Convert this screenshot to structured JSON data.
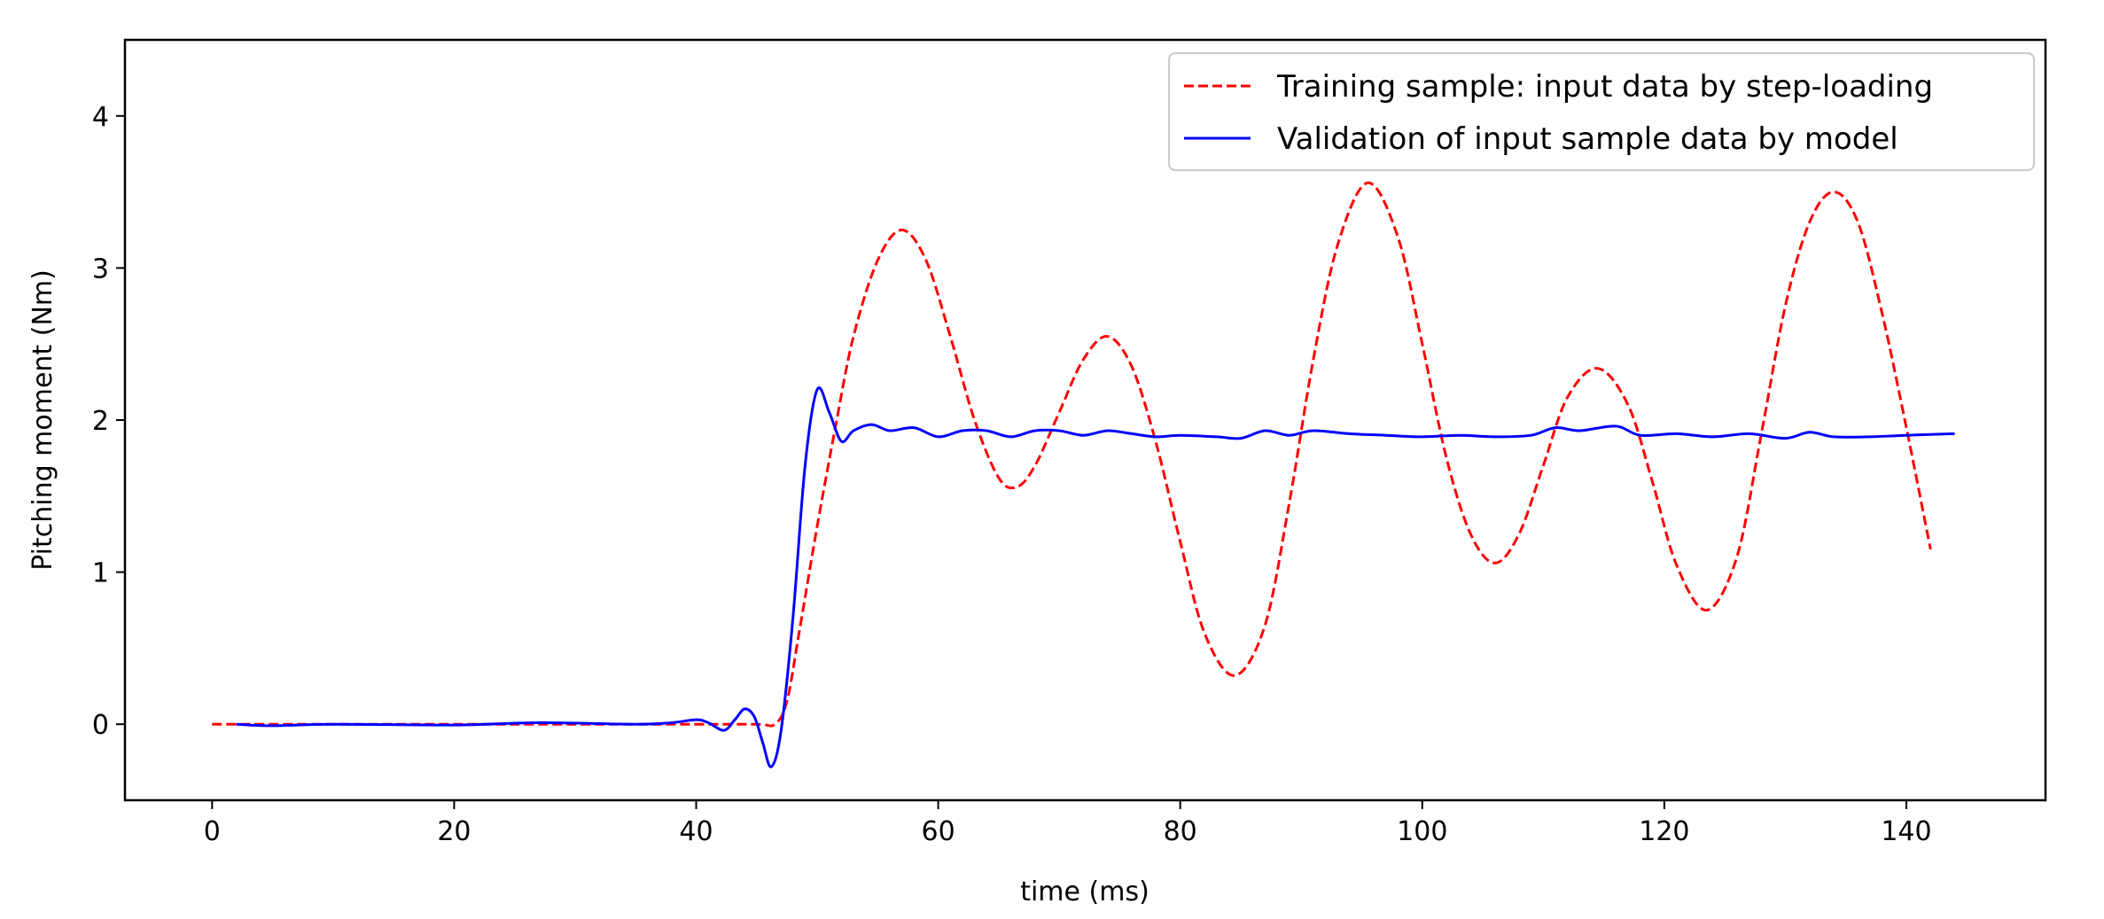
{
  "chart_data": {
    "type": "line",
    "title": "",
    "xlabel": "time (ms)",
    "ylabel": "Pitching moment (Nm)",
    "xlim": [
      -7.2,
      151.5
    ],
    "ylim": [
      -0.5,
      4.5
    ],
    "xticks": [
      0,
      20,
      40,
      60,
      80,
      100,
      120,
      140
    ],
    "yticks": [
      0,
      1,
      2,
      3,
      4
    ],
    "grid": false,
    "legend_position": "top-right",
    "series": [
      {
        "name": "Training sample: input data by step-loading",
        "color": "#ff0000",
        "style": "dashed",
        "points": [
          [
            0,
            0
          ],
          [
            10,
            0
          ],
          [
            20,
            0
          ],
          [
            30,
            0
          ],
          [
            40,
            0
          ],
          [
            45,
            0
          ],
          [
            46.5,
            0.0
          ],
          [
            47.5,
            0.15
          ],
          [
            48.5,
            0.6
          ],
          [
            50,
            1.3
          ],
          [
            51.5,
            1.95
          ],
          [
            53,
            2.55
          ],
          [
            55,
            3.05
          ],
          [
            57,
            3.25
          ],
          [
            59,
            3.05
          ],
          [
            61,
            2.55
          ],
          [
            63,
            2.0
          ],
          [
            65,
            1.62
          ],
          [
            66.5,
            1.56
          ],
          [
            68,
            1.7
          ],
          [
            70,
            2.05
          ],
          [
            72,
            2.4
          ],
          [
            74,
            2.55
          ],
          [
            76,
            2.35
          ],
          [
            78,
            1.85
          ],
          [
            80,
            1.2
          ],
          [
            82,
            0.6
          ],
          [
            84.5,
            0.32
          ],
          [
            87,
            0.65
          ],
          [
            89,
            1.45
          ],
          [
            91,
            2.4
          ],
          [
            93,
            3.15
          ],
          [
            95.5,
            3.56
          ],
          [
            98,
            3.2
          ],
          [
            100,
            2.5
          ],
          [
            102,
            1.75
          ],
          [
            104,
            1.25
          ],
          [
            106,
            1.06
          ],
          [
            108,
            1.25
          ],
          [
            110,
            1.7
          ],
          [
            112,
            2.15
          ],
          [
            114.5,
            2.34
          ],
          [
            117,
            2.1
          ],
          [
            119,
            1.6
          ],
          [
            121,
            1.05
          ],
          [
            123.5,
            0.75
          ],
          [
            126,
            1.1
          ],
          [
            128,
            1.9
          ],
          [
            130,
            2.75
          ],
          [
            132,
            3.3
          ],
          [
            134,
            3.5
          ],
          [
            136,
            3.3
          ],
          [
            138,
            2.7
          ],
          [
            140,
            1.95
          ],
          [
            142,
            1.15
          ]
        ]
      },
      {
        "name": "Validation of input sample data by model",
        "color": "#0000ff",
        "style": "solid",
        "points": [
          [
            2,
            0.0
          ],
          [
            5,
            -0.01
          ],
          [
            10,
            0.0
          ],
          [
            20,
            -0.005
          ],
          [
            27,
            0.01
          ],
          [
            35,
            0.0
          ],
          [
            38,
            0.01
          ],
          [
            40,
            0.03
          ],
          [
            41,
            0.01
          ],
          [
            42.3,
            -0.04
          ],
          [
            43.2,
            0.03
          ],
          [
            44,
            0.1
          ],
          [
            44.8,
            0.05
          ],
          [
            45.5,
            -0.12
          ],
          [
            46.2,
            -0.28
          ],
          [
            47,
            -0.05
          ],
          [
            48,
            0.7
          ],
          [
            49,
            1.7
          ],
          [
            50,
            2.2
          ],
          [
            51,
            2.05
          ],
          [
            52,
            1.86
          ],
          [
            53,
            1.93
          ],
          [
            54.5,
            1.97
          ],
          [
            56,
            1.93
          ],
          [
            58,
            1.95
          ],
          [
            60,
            1.89
          ],
          [
            62,
            1.93
          ],
          [
            64,
            1.93
          ],
          [
            66,
            1.89
          ],
          [
            68,
            1.93
          ],
          [
            70,
            1.93
          ],
          [
            72,
            1.9
          ],
          [
            74,
            1.93
          ],
          [
            76,
            1.91
          ],
          [
            78,
            1.89
          ],
          [
            80,
            1.9
          ],
          [
            83,
            1.89
          ],
          [
            85,
            1.88
          ],
          [
            87,
            1.93
          ],
          [
            89,
            1.9
          ],
          [
            91,
            1.93
          ],
          [
            94,
            1.91
          ],
          [
            97,
            1.9
          ],
          [
            100,
            1.89
          ],
          [
            103,
            1.9
          ],
          [
            106,
            1.89
          ],
          [
            109,
            1.9
          ],
          [
            111,
            1.95
          ],
          [
            113,
            1.93
          ],
          [
            116,
            1.96
          ],
          [
            118,
            1.9
          ],
          [
            121,
            1.91
          ],
          [
            124,
            1.89
          ],
          [
            127,
            1.91
          ],
          [
            130,
            1.88
          ],
          [
            132,
            1.92
          ],
          [
            134,
            1.89
          ],
          [
            137,
            1.89
          ],
          [
            140,
            1.9
          ],
          [
            144,
            1.91
          ]
        ]
      }
    ]
  }
}
